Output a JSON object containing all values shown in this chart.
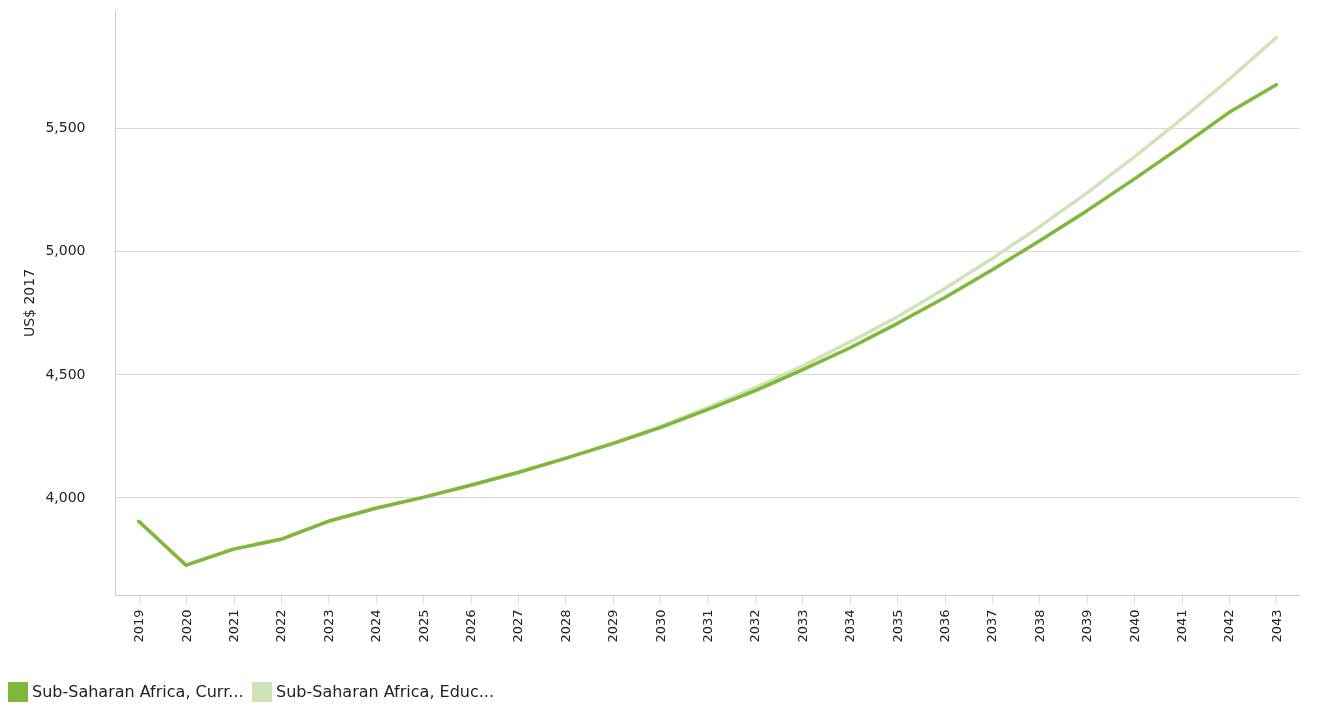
{
  "chart_data": {
    "type": "line",
    "ylabel": "US$ 2017",
    "categories": [
      "2019",
      "2020",
      "2021",
      "2022",
      "2023",
      "2024",
      "2025",
      "2026",
      "2027",
      "2028",
      "2029",
      "2030",
      "2031",
      "2032",
      "2033",
      "2034",
      "2035",
      "2036",
      "2037",
      "2038",
      "2039",
      "2040",
      "2041",
      "2042",
      "2043"
    ],
    "series": [
      {
        "name": "Sub-Saharan Africa, Curr...",
        "color": "#7db83a",
        "values": [
          3903,
          3725,
          3790,
          3830,
          3903,
          3956,
          4000,
          4049,
          4101,
          4158,
          4218,
          4283,
          4356,
          4432,
          4517,
          4606,
          4705,
          4810,
          4922,
          5040,
          5162,
          5291,
          5424,
          5561,
          5674
        ]
      },
      {
        "name": "Sub-Saharan Africa, Educ...",
        "color": "#cfe3b8",
        "values": [
          3903,
          3725,
          3790,
          3830,
          3903,
          3956,
          4000,
          4049,
          4101,
          4158,
          4220,
          4287,
          4364,
          4444,
          4533,
          4630,
          4732,
          4846,
          4968,
          5097,
          5234,
          5380,
          5534,
          5695,
          5865
        ]
      }
    ],
    "ylim": [
      3604,
      5977
    ],
    "yticks": [
      {
        "value": 4000,
        "label": "4,000"
      },
      {
        "value": 4500,
        "label": "4,500"
      },
      {
        "value": 5000,
        "label": "5,000"
      },
      {
        "value": 5500,
        "label": "5,500"
      }
    ],
    "grid": "y",
    "legend": "bottom left",
    "marker": "none",
    "line_style": "solid"
  }
}
